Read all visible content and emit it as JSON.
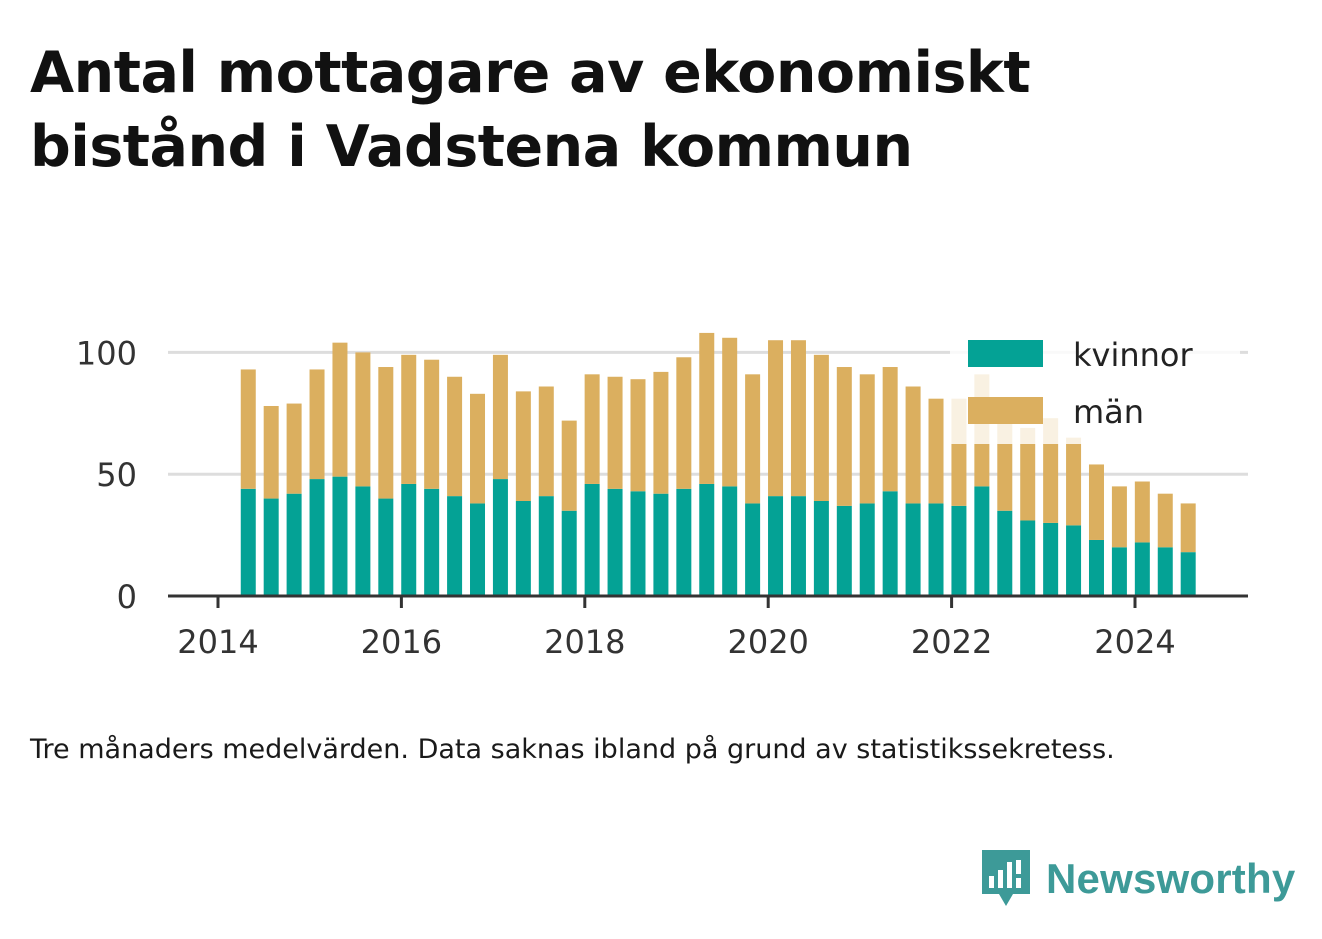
{
  "title": "Antal mottagare av ekonomiskt bistånd i Vadstena kommun",
  "note": "Tre månaders medelvärden. Data saknas ibland på grund av statistikssekretess.",
  "brand": {
    "name": "Newsworthy",
    "color": "#3d9a98",
    "icon": "newsworthy-bar-chart-icon"
  },
  "chart_data": {
    "type": "bar",
    "stacked": true,
    "x_axis": {
      "min": 2014.0,
      "max": 2025.0,
      "ticks": [
        2014,
        2016,
        2018,
        2020,
        2022,
        2024
      ]
    },
    "y_axis": {
      "min": 0,
      "max": 110,
      "ticks": [
        0,
        50,
        100
      ]
    },
    "grid": "horizontal",
    "legend_position": "top-right",
    "colors": {
      "kvinnor": "#04a295",
      "män": "#dbaf5f",
      "grid": "#dddddd",
      "axis": "#333333"
    },
    "x": [
      2014.33,
      2014.58,
      2014.83,
      2015.08,
      2015.33,
      2015.58,
      2015.83,
      2016.08,
      2016.33,
      2016.58,
      2016.83,
      2017.08,
      2017.33,
      2017.58,
      2017.83,
      2018.08,
      2018.33,
      2018.58,
      2018.83,
      2019.08,
      2019.33,
      2019.58,
      2019.83,
      2020.08,
      2020.33,
      2020.58,
      2020.83,
      2021.08,
      2021.33,
      2021.58,
      2021.83,
      2022.08,
      2022.33,
      2022.58,
      2022.83,
      2023.08,
      2023.33,
      2023.58,
      2023.83,
      2024.08,
      2024.33,
      2024.58
    ],
    "series": [
      {
        "name": "kvinnor",
        "values": [
          44,
          40,
          42,
          48,
          49,
          45,
          40,
          46,
          44,
          41,
          38,
          48,
          39,
          41,
          35,
          46,
          44,
          43,
          42,
          44,
          46,
          45,
          38,
          41,
          41,
          39,
          37,
          38,
          43,
          38,
          38,
          37,
          45,
          35,
          31,
          30,
          29,
          23,
          20,
          22,
          20,
          18
        ]
      },
      {
        "name": "män",
        "values": [
          49,
          38,
          37,
          45,
          55,
          55,
          54,
          53,
          53,
          49,
          45,
          51,
          45,
          45,
          37,
          45,
          46,
          46,
          50,
          54,
          62,
          61,
          53,
          64,
          64,
          60,
          57,
          53,
          51,
          48,
          43,
          44,
          46,
          42,
          38,
          43,
          36,
          31,
          25,
          25,
          22,
          20
        ]
      }
    ]
  }
}
